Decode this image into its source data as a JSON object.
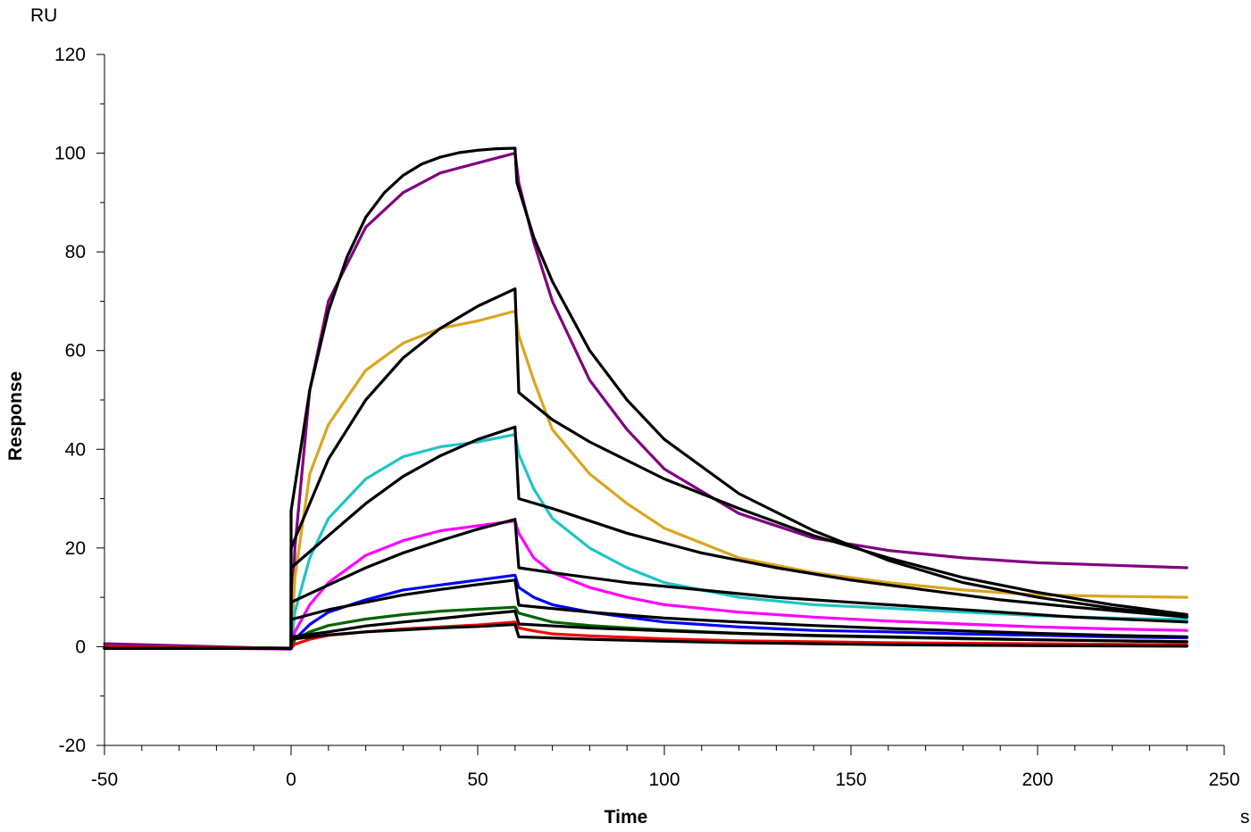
{
  "chart_data": {
    "type": "line",
    "xlabel": "Time",
    "ylabel": "Response",
    "x_unit": "s",
    "y_unit": "RU",
    "xlim": [
      -50,
      250
    ],
    "ylim": [
      -20,
      120
    ],
    "x_ticks": [
      -50,
      0,
      50,
      100,
      150,
      200,
      250
    ],
    "y_ticks": [
      -20,
      0,
      20,
      40,
      60,
      80,
      100,
      120
    ],
    "x_tick_labels": [
      "-50",
      "0",
      "50",
      "100",
      "150",
      "200",
      "250"
    ],
    "y_tick_labels": [
      "-20",
      "0",
      "20",
      "40",
      "60",
      "80",
      "100",
      "120"
    ],
    "grid": false,
    "legend": "none",
    "association_end": 60,
    "series": [
      {
        "color": "#800080",
        "values": [
          [
            -50,
            0.6
          ],
          [
            0,
            -0.4
          ],
          [
            1,
            20
          ],
          [
            5,
            52
          ],
          [
            10,
            70
          ],
          [
            20,
            85
          ],
          [
            30,
            92
          ],
          [
            40,
            96
          ],
          [
            50,
            98
          ],
          [
            60,
            100
          ],
          [
            61,
            94
          ],
          [
            65,
            82
          ],
          [
            70,
            70
          ],
          [
            80,
            54
          ],
          [
            90,
            44
          ],
          [
            100,
            36
          ],
          [
            120,
            27
          ],
          [
            140,
            22
          ],
          [
            160,
            19.5
          ],
          [
            180,
            18
          ],
          [
            200,
            17
          ],
          [
            220,
            16.5
          ],
          [
            240,
            16
          ]
        ]
      },
      {
        "color": "#daa520",
        "values": [
          [
            -50,
            0
          ],
          [
            0,
            -0.3
          ],
          [
            1,
            14
          ],
          [
            5,
            35
          ],
          [
            10,
            45
          ],
          [
            20,
            56
          ],
          [
            30,
            61.5
          ],
          [
            40,
            64.5
          ],
          [
            50,
            66
          ],
          [
            60,
            68
          ],
          [
            61,
            63
          ],
          [
            65,
            54
          ],
          [
            70,
            44
          ],
          [
            80,
            35
          ],
          [
            90,
            29
          ],
          [
            100,
            24
          ],
          [
            120,
            18
          ],
          [
            140,
            15
          ],
          [
            160,
            13
          ],
          [
            180,
            11.5
          ],
          [
            200,
            10.5
          ],
          [
            220,
            10.2
          ],
          [
            240,
            10
          ]
        ]
      },
      {
        "color": "#20c5c5",
        "values": [
          [
            -50,
            0
          ],
          [
            0,
            -0.3
          ],
          [
            1,
            7
          ],
          [
            5,
            18
          ],
          [
            10,
            26
          ],
          [
            20,
            34
          ],
          [
            30,
            38.5
          ],
          [
            40,
            40.5
          ],
          [
            50,
            41.5
          ],
          [
            60,
            43
          ],
          [
            61,
            39
          ],
          [
            65,
            32
          ],
          [
            70,
            26
          ],
          [
            80,
            20
          ],
          [
            90,
            16
          ],
          [
            100,
            13
          ],
          [
            120,
            10
          ],
          [
            140,
            8.5
          ],
          [
            160,
            7.8
          ],
          [
            180,
            7
          ],
          [
            200,
            6.3
          ],
          [
            220,
            5.8
          ],
          [
            240,
            5.5
          ]
        ]
      },
      {
        "color": "#ff00ff",
        "values": [
          [
            -50,
            0
          ],
          [
            0,
            -0.5
          ],
          [
            1,
            3
          ],
          [
            5,
            8.5
          ],
          [
            10,
            13
          ],
          [
            20,
            18.5
          ],
          [
            30,
            21.5
          ],
          [
            40,
            23.5
          ],
          [
            50,
            24.5
          ],
          [
            60,
            25.5
          ],
          [
            61,
            23
          ],
          [
            65,
            18
          ],
          [
            70,
            15
          ],
          [
            80,
            12
          ],
          [
            90,
            10
          ],
          [
            100,
            8.5
          ],
          [
            120,
            7
          ],
          [
            140,
            6
          ],
          [
            160,
            5.2
          ],
          [
            180,
            4.6
          ],
          [
            200,
            4
          ],
          [
            220,
            3.6
          ],
          [
            240,
            3.3
          ]
        ]
      },
      {
        "color": "#0000ff",
        "values": [
          [
            -50,
            0
          ],
          [
            0,
            -0.4
          ],
          [
            1,
            1.5
          ],
          [
            5,
            4.5
          ],
          [
            10,
            7
          ],
          [
            20,
            9.5
          ],
          [
            30,
            11.5
          ],
          [
            40,
            12.5
          ],
          [
            50,
            13.5
          ],
          [
            60,
            14.5
          ],
          [
            61,
            12
          ],
          [
            65,
            10
          ],
          [
            70,
            8.5
          ],
          [
            80,
            7
          ],
          [
            90,
            6
          ],
          [
            100,
            5
          ],
          [
            120,
            4
          ],
          [
            140,
            3.3
          ],
          [
            160,
            3
          ],
          [
            180,
            2.6
          ],
          [
            200,
            2.3
          ],
          [
            220,
            2
          ],
          [
            240,
            1.8
          ]
        ]
      },
      {
        "color": "#006400",
        "values": [
          [
            -50,
            0
          ],
          [
            0,
            -0.3
          ],
          [
            1,
            1.5
          ],
          [
            5,
            3
          ],
          [
            10,
            4.3
          ],
          [
            20,
            5.6
          ],
          [
            30,
            6.5
          ],
          [
            40,
            7.2
          ],
          [
            50,
            7.6
          ],
          [
            60,
            8
          ],
          [
            61,
            6.8
          ],
          [
            65,
            6
          ],
          [
            70,
            5
          ],
          [
            80,
            4.3
          ],
          [
            90,
            3.8
          ],
          [
            100,
            3.4
          ],
          [
            120,
            2.7
          ],
          [
            140,
            2.2
          ],
          [
            160,
            1.9
          ],
          [
            180,
            1.6
          ],
          [
            200,
            1.4
          ],
          [
            220,
            1.2
          ],
          [
            240,
            1
          ]
        ]
      },
      {
        "color": "#ff0000",
        "values": [
          [
            -50,
            0
          ],
          [
            0,
            -0.3
          ],
          [
            1,
            0.5
          ],
          [
            5,
            1.5
          ],
          [
            10,
            2.3
          ],
          [
            20,
            3
          ],
          [
            30,
            3.6
          ],
          [
            40,
            4
          ],
          [
            50,
            4.4
          ],
          [
            60,
            5
          ],
          [
            61,
            3.8
          ],
          [
            65,
            3.2
          ],
          [
            70,
            2.6
          ],
          [
            80,
            2.2
          ],
          [
            90,
            1.9
          ],
          [
            100,
            1.6
          ],
          [
            120,
            1.2
          ],
          [
            140,
            1
          ],
          [
            160,
            0.8
          ],
          [
            180,
            0.7
          ],
          [
            200,
            0.6
          ],
          [
            220,
            0.5
          ],
          [
            240,
            0.4
          ]
        ]
      },
      {
        "color": "#000000",
        "values": [
          [
            -50,
            -0.3
          ],
          [
            0,
            -0.3
          ],
          [
            0,
            27.5
          ],
          [
            5,
            52
          ],
          [
            10,
            68
          ],
          [
            15,
            79
          ],
          [
            20,
            87
          ],
          [
            25,
            92
          ],
          [
            30,
            95.5
          ],
          [
            35,
            97.8
          ],
          [
            40,
            99.2
          ],
          [
            45,
            100.1
          ],
          [
            50,
            100.6
          ],
          [
            55,
            100.9
          ],
          [
            60,
            101
          ],
          [
            60.5,
            94
          ],
          [
            65,
            83
          ],
          [
            70,
            74
          ],
          [
            80,
            60
          ],
          [
            90,
            50
          ],
          [
            100,
            42
          ],
          [
            120,
            31
          ],
          [
            140,
            23.5
          ],
          [
            160,
            17.5
          ],
          [
            180,
            13
          ],
          [
            200,
            10
          ],
          [
            220,
            7.8
          ],
          [
            240,
            6.2
          ]
        ]
      },
      {
        "color": "#000000",
        "values": [
          [
            -50,
            -0.3
          ],
          [
            0,
            -0.3
          ],
          [
            0,
            20
          ],
          [
            10,
            38
          ],
          [
            20,
            50
          ],
          [
            30,
            58.5
          ],
          [
            40,
            64.5
          ],
          [
            50,
            69
          ],
          [
            60,
            72.5
          ],
          [
            61,
            51.5
          ],
          [
            70,
            46
          ],
          [
            80,
            41.5
          ],
          [
            100,
            34
          ],
          [
            120,
            28
          ],
          [
            140,
            22.5
          ],
          [
            160,
            18
          ],
          [
            180,
            14
          ],
          [
            200,
            11
          ],
          [
            220,
            8.5
          ],
          [
            240,
            6.5
          ]
        ]
      },
      {
        "color": "#000000",
        "values": [
          [
            -50,
            -0.3
          ],
          [
            0,
            -0.3
          ],
          [
            0,
            16
          ],
          [
            10,
            22.5
          ],
          [
            20,
            29
          ],
          [
            30,
            34.5
          ],
          [
            40,
            38.7
          ],
          [
            50,
            42
          ],
          [
            60,
            44.5
          ],
          [
            61,
            30
          ],
          [
            70,
            28
          ],
          [
            90,
            23
          ],
          [
            110,
            19
          ],
          [
            130,
            16
          ],
          [
            150,
            13.5
          ],
          [
            170,
            11.5
          ],
          [
            190,
            9.5
          ],
          [
            210,
            8
          ],
          [
            240,
            6
          ]
        ]
      },
      {
        "color": "#000000",
        "values": [
          [
            -50,
            -0.3
          ],
          [
            0,
            -0.3
          ],
          [
            0,
            9
          ],
          [
            10,
            12.5
          ],
          [
            20,
            16
          ],
          [
            30,
            19
          ],
          [
            40,
            21.5
          ],
          [
            50,
            23.8
          ],
          [
            60,
            25.8
          ],
          [
            61,
            16
          ],
          [
            70,
            15
          ],
          [
            90,
            13
          ],
          [
            110,
            11.5
          ],
          [
            130,
            10
          ],
          [
            150,
            9
          ],
          [
            170,
            8
          ],
          [
            190,
            7
          ],
          [
            210,
            6
          ],
          [
            240,
            5
          ]
        ]
      },
      {
        "color": "#000000",
        "values": [
          [
            -50,
            -0.3
          ],
          [
            0,
            -0.3
          ],
          [
            0,
            5.5
          ],
          [
            10,
            7.5
          ],
          [
            20,
            9
          ],
          [
            30,
            10.5
          ],
          [
            40,
            11.6
          ],
          [
            50,
            12.6
          ],
          [
            60,
            13.5
          ],
          [
            61,
            8.4
          ],
          [
            80,
            7
          ],
          [
            100,
            5.8
          ],
          [
            120,
            5
          ],
          [
            140,
            4.3
          ],
          [
            160,
            3.7
          ],
          [
            180,
            3.2
          ],
          [
            200,
            2.7
          ],
          [
            220,
            2.3
          ],
          [
            240,
            2
          ]
        ]
      },
      {
        "color": "#000000",
        "values": [
          [
            -50,
            -0.3
          ],
          [
            0,
            -0.3
          ],
          [
            0,
            2
          ],
          [
            10,
            3
          ],
          [
            20,
            4.2
          ],
          [
            30,
            5
          ],
          [
            40,
            5.7
          ],
          [
            50,
            6.5
          ],
          [
            60,
            7.2
          ],
          [
            61,
            4.6
          ],
          [
            80,
            3.8
          ],
          [
            100,
            3.2
          ],
          [
            120,
            2.7
          ],
          [
            140,
            2.3
          ],
          [
            160,
            2
          ],
          [
            180,
            1.7
          ],
          [
            200,
            1.4
          ],
          [
            220,
            1.2
          ],
          [
            240,
            1
          ]
        ]
      },
      {
        "color": "#000000",
        "values": [
          [
            -50,
            -0.3
          ],
          [
            0,
            -0.3
          ],
          [
            0,
            1.5
          ],
          [
            10,
            2.4
          ],
          [
            20,
            3
          ],
          [
            30,
            3.4
          ],
          [
            40,
            3.8
          ],
          [
            50,
            4.1
          ],
          [
            60,
            4.5
          ],
          [
            61,
            2
          ],
          [
            80,
            1.5
          ],
          [
            100,
            1.1
          ],
          [
            120,
            0.8
          ],
          [
            140,
            0.6
          ],
          [
            160,
            0.4
          ],
          [
            180,
            0.3
          ],
          [
            200,
            0.2
          ],
          [
            240,
            0.1
          ]
        ]
      }
    ]
  }
}
